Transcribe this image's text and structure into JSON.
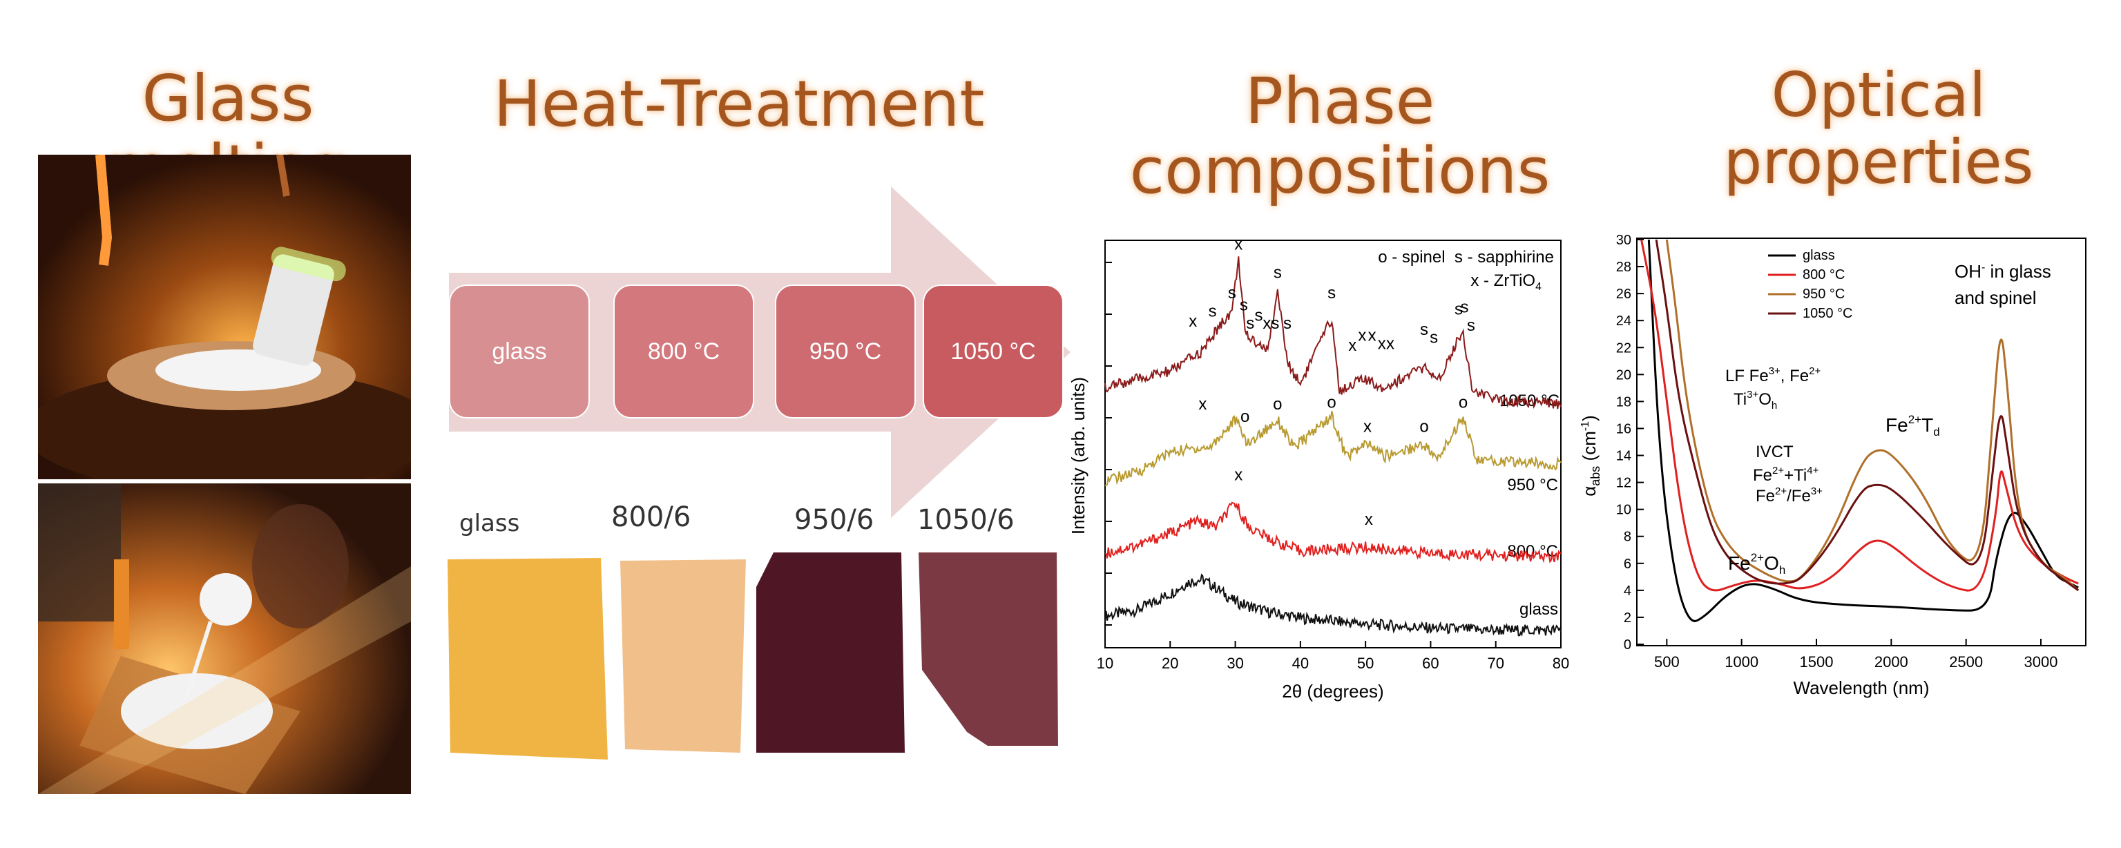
{
  "headings": {
    "glass_melting": "Glass melting",
    "heat_treatment": "Heat-Treatment",
    "phase_line1": "Phase",
    "phase_line2": "compositions",
    "optical_line1": "Optical",
    "optical_line2": "properties"
  },
  "heat_steps": [
    "glass",
    "800 °C",
    "950 °C",
    "1050 °C"
  ],
  "sample_labels": [
    "glass",
    "800/6",
    "950/6",
    "1050/6"
  ],
  "colors": {
    "heading": "#a5561f",
    "glass_sample": "#f0b445",
    "s800_sample": "#f1c08a",
    "s950_sample": "#4f1626",
    "s1050_sample": "#7b3a43",
    "xrd_1050": "#8b1a1a",
    "xrd_950": "#b89a30",
    "xrd_800": "#e0201e",
    "xrd_glass": "#111111",
    "opt_glass": "#000000",
    "opt_800": "#e02020",
    "opt_950": "#b0702a",
    "opt_1050": "#6a1010"
  },
  "xrd": {
    "ylabel": "Intensity (arb. units)",
    "xlabel": "2θ (degrees)",
    "legend_line1": "o - spinel  s - sapphirine",
    "legend_line2": "x - ZrTiO",
    "legend_line2_sub": "4",
    "curve_labels": [
      "1050 °C",
      "950 °C",
      "800 °C",
      "glass"
    ],
    "peak_marks": {
      "1050": [
        "x",
        "s",
        "s",
        "x",
        "s",
        "s",
        "s",
        "xs",
        "s",
        "s",
        "s",
        "x",
        "x",
        "x",
        "x",
        "x",
        "s",
        "s",
        "s",
        "s",
        "s"
      ],
      "950": [
        "x",
        "o",
        "o",
        "o",
        "x",
        "o",
        "o"
      ],
      "800": [
        "x",
        "x"
      ]
    }
  },
  "chart_data": [
    {
      "type": "line",
      "title": "",
      "xlabel": "2θ (degrees)",
      "ylabel": "Intensity (arb. units)",
      "xlim": [
        10,
        80
      ],
      "xticks": [
        10,
        20,
        30,
        40,
        50,
        60,
        70,
        80
      ],
      "series": [
        {
          "name": "glass",
          "x": [
            10,
            15,
            20,
            23,
            25,
            27,
            30,
            35,
            40,
            50,
            60,
            70,
            80
          ],
          "y": [
            0.75,
            0.9,
            1.3,
            1.6,
            1.65,
            1.45,
            1.1,
            0.85,
            0.7,
            0.55,
            0.45,
            0.4,
            0.4
          ]
        },
        {
          "name": "800 °C",
          "x": [
            10,
            15,
            20,
            24,
            27,
            30,
            32,
            36,
            40,
            50,
            60,
            70,
            80
          ],
          "y": [
            2.3,
            2.5,
            2.8,
            3.1,
            2.95,
            3.55,
            2.95,
            2.6,
            2.35,
            2.45,
            2.3,
            2.25,
            2.2
          ]
        },
        {
          "name": "950 °C",
          "x": [
            10,
            15,
            20,
            24,
            26,
            30,
            32,
            36.5,
            39,
            44.8,
            47,
            50.3,
            53,
            59,
            61,
            65,
            67,
            80
          ],
          "y": [
            4.1,
            4.3,
            4.8,
            4.9,
            4.9,
            5.6,
            5.0,
            5.6,
            4.9,
            5.7,
            4.7,
            5.0,
            4.7,
            5.0,
            4.6,
            5.7,
            4.6,
            4.5
          ]
        },
        {
          "name": "1050 °C",
          "x": [
            10,
            15,
            20,
            25,
            27.5,
            29.5,
            30.5,
            31.5,
            33.5,
            35,
            36.5,
            38,
            40,
            44.8,
            46,
            48,
            49.5,
            51,
            53,
            59,
            61,
            64.5,
            65,
            66.5,
            70,
            80
          ],
          "y": [
            6.4,
            6.6,
            6.8,
            7.3,
            7.9,
            8.3,
            9.6,
            7.7,
            7.5,
            7.3,
            8.8,
            7.0,
            6.5,
            8.1,
            6.3,
            6.5,
            6.6,
            6.5,
            6.4,
            6.9,
            6.5,
            7.7,
            7.7,
            6.3,
            6.1,
            6.0
          ]
        }
      ]
    },
    {
      "type": "line",
      "title": "",
      "xlabel": "Wavelength (nm)",
      "ylabel": "αabs (cm-1)",
      "xlim": [
        300,
        3300
      ],
      "ylim": [
        0,
        30
      ],
      "xticks": [
        500,
        1000,
        1500,
        2000,
        2500,
        3000
      ],
      "yticks": [
        0,
        2,
        4,
        6,
        8,
        10,
        12,
        14,
        16,
        18,
        20,
        22,
        24,
        26,
        28,
        30
      ],
      "annotations": [
        "OH- in glass and spinel",
        "LF Fe3+, Fe2+ Ti3+Oh",
        "IVCT Fe2++Ti4+ Fe2+/Fe3+",
        "Fe2+Td",
        "Fe2+Oh"
      ],
      "series": [
        {
          "name": "glass",
          "x": [
            380,
            450,
            550,
            650,
            750,
            900,
            1050,
            1200,
            1400,
            1700,
            2000,
            2400,
            2650,
            2700,
            2800,
            2900,
            3000,
            3100,
            3200,
            3250
          ],
          "y": [
            30,
            14,
            5,
            1.5,
            2,
            3.7,
            4.6,
            4.2,
            3.2,
            2.9,
            2.8,
            2.5,
            2.5,
            6.5,
            10.2,
            9,
            7,
            5,
            4.5,
            4.2
          ]
        },
        {
          "name": "800 °C",
          "x": [
            330,
            420,
            500,
            600,
            700,
            800,
            950,
            1100,
            1250,
            1400,
            1600,
            1800,
            1900,
            2000,
            2200,
            2400,
            2600,
            2700,
            2730,
            2760,
            2850,
            3000,
            3150,
            3250
          ],
          "y": [
            30,
            25,
            18,
            9.5,
            5,
            3.8,
            4.4,
            4.8,
            4.5,
            4,
            4.8,
            7.2,
            7.8,
            7.4,
            5.5,
            4.2,
            3.8,
            9.5,
            13.3,
            12,
            8,
            6,
            5,
            4.5
          ]
        },
        {
          "name": "950 °C",
          "x": [
            500,
            560,
            620,
            700,
            800,
            900,
            1000,
            1100,
            1200,
            1300,
            1400,
            1600,
            1800,
            1900,
            2000,
            2200,
            2400,
            2600,
            2680,
            2730,
            2770,
            2850,
            3000,
            3150,
            3250
          ],
          "y": [
            30,
            25,
            19,
            14,
            9.5,
            7.5,
            6.3,
            5.6,
            5,
            4.6,
            4.8,
            8,
            13.5,
            14.5,
            14.2,
            11.5,
            7,
            5.6,
            17,
            23.8,
            20,
            9,
            6,
            5,
            4
          ]
        },
        {
          "name": "1050 °C",
          "x": [
            430,
            500,
            580,
            700,
            800,
            900,
            1000,
            1100,
            1200,
            1300,
            1400,
            1600,
            1800,
            1900,
            2000,
            2200,
            2400,
            2600,
            2680,
            2730,
            2770,
            2850,
            3000,
            3150,
            3250
          ],
          "y": [
            30,
            25,
            18,
            12.5,
            8.5,
            6.5,
            5.5,
            4.8,
            4.5,
            4.5,
            4.8,
            7.5,
            11.5,
            11.9,
            11.6,
            9.5,
            7,
            5.2,
            13,
            17.8,
            15,
            9,
            6,
            4.8,
            4
          ]
        }
      ]
    }
  ]
}
